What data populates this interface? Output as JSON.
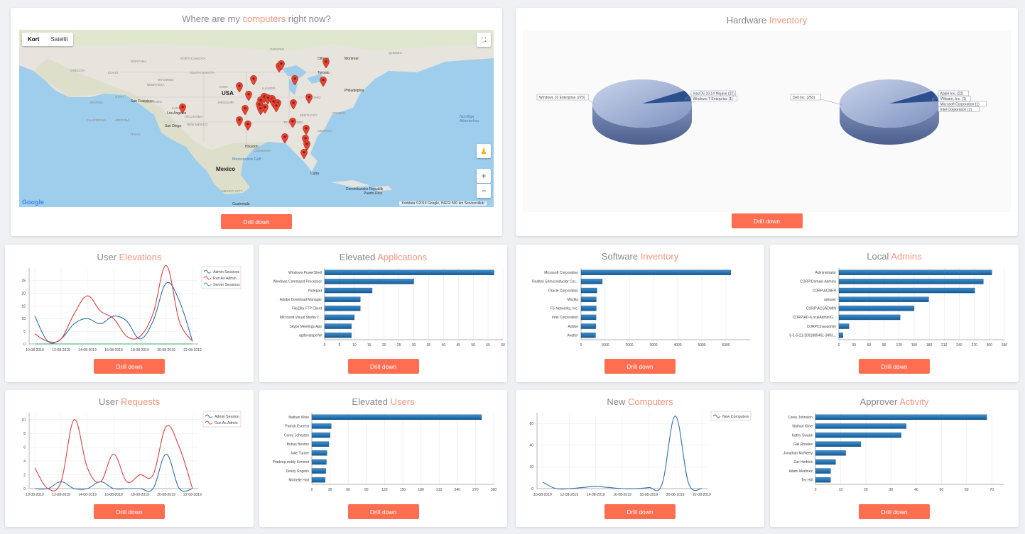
{
  "map_card": {
    "title_pre": "Where are my ",
    "title_accent": "computers",
    "title_post": " right now?",
    "map_types": [
      "Kort",
      "Satellit"
    ],
    "labels": [
      "USA",
      "Mexico",
      "Nordlige Atlanterhav",
      "Mexicanske Golf",
      "Cuba",
      "Dominikanske Republik",
      "Puerto Rico",
      "Guatemala",
      "Houston",
      "San Diego",
      "San Francisco",
      "Los Angeles",
      "Ottawa",
      "Toronto",
      "Montreal",
      "Philadelphia",
      "NEBRASKA",
      "KANSAS",
      "NEW MEXICO",
      "TEXAS",
      "ONTARIO",
      "QUEBEC",
      "NORTH DAKOTA",
      "SOUTH DAKOTA",
      "MONTANA",
      "WYOMING",
      "COLORADO",
      "UTAH",
      "NEVADA",
      "CALIFORNIA",
      "IDAHO",
      "OREGON",
      "ARIZONA",
      "OKLAHOMA",
      "MISSOURI",
      "ILLINOIS",
      "IOWA",
      "OHIO",
      "GEORGIA",
      "VIRGINIA",
      "KENTUCKY",
      "TENNESSEE",
      "LOUISIANA",
      "MEXICO CITY"
    ],
    "footer": "Kortdata ©2019 Google, INEGI   500 km   Servicevilkår",
    "google": "Google",
    "drill_label": "Drill down"
  },
  "hardware_card": {
    "title_pre": "Hardware ",
    "title_accent": "Inventory",
    "pie1": {
      "labels": [
        "Windows 10 Enterprise (273)",
        "macOS 10.14 Mojave (22)",
        "Windows 7 Enterprise (1)"
      ],
      "values": [
        273,
        22,
        1
      ]
    },
    "pie2": {
      "labels": [
        "Dell Inc. (283)",
        "Apple Inc. (22)",
        "VMware, Inc. (1)",
        "Microsoft Corporation (1)",
        "Intel Corporation (1)"
      ],
      "values": [
        283,
        22,
        1,
        1,
        1
      ]
    },
    "drill_label": "Drill down"
  },
  "user_elevations": {
    "title_pre": "User ",
    "title_accent": "Elevations",
    "drill_label": "Drill down",
    "chart_data": {
      "type": "line",
      "x": [
        "10-08-2019",
        "11-08-2019",
        "12-08-2019",
        "13-08-2019",
        "14-08-2019",
        "15-08-2019",
        "16-08-2019",
        "17-08-2019",
        "18-08-2019",
        "19-08-2019",
        "20-08-2019",
        "21-08-2019",
        "22-08-2019"
      ],
      "xticks": [
        "10-08-2019",
        "12-08-2019",
        "14-08-2019",
        "16-08-2019",
        "18-08-2019",
        "20-08-2019",
        "22-08-2019"
      ],
      "ylim": [
        0,
        30
      ],
      "yticks": [
        0,
        5,
        10,
        15,
        20,
        25
      ],
      "series": [
        {
          "name": "Admin Sessions",
          "color": "#2f6fad",
          "values": [
            11,
            1,
            2,
            8,
            10,
            8,
            11,
            9,
            2,
            9,
            24,
            17,
            1
          ]
        },
        {
          "name": "Run As Admin",
          "color": "#d94040",
          "values": [
            4,
            1,
            2,
            12,
            19,
            13,
            10,
            3,
            3,
            12,
            31,
            9,
            1
          ]
        },
        {
          "name": "Server Sessions",
          "color": "#3aa86b",
          "values": [
            0,
            0,
            0,
            0,
            0,
            0,
            0,
            0,
            0,
            0,
            0,
            0,
            0
          ]
        }
      ]
    }
  },
  "elevated_applications": {
    "title_pre": "Elevated ",
    "title_accent": "Applications",
    "drill_label": "Drill down",
    "chart_data": {
      "type": "bar",
      "categories": [
        "Windows PowerShell",
        "Windows Command Processor",
        "Notepad",
        "Adobe Download Manager",
        "FileZilla FTP Client",
        "Microsoft Visual Studio 2...",
        "Skype Meetings App",
        "agdevalsperW"
      ],
      "values": [
        57,
        30,
        16,
        12,
        12,
        10,
        9,
        9
      ],
      "xlim": [
        0,
        60
      ],
      "xticks": [
        0,
        5,
        10,
        15,
        20,
        25,
        30,
        35,
        40,
        45,
        50,
        55,
        60
      ]
    }
  },
  "software_inventory": {
    "title_pre": "Software ",
    "title_accent": "Inventory",
    "drill_label": "Drill down",
    "chart_data": {
      "type": "bar",
      "categories": [
        "Microsoft Corporation",
        "Realtek Semiconductor Cor...",
        "Oracle Corporation",
        "Mozilla",
        "F5 Networks, Inc.",
        "Intel Corporation",
        "Adobe",
        "Avatier"
      ],
      "values": [
        6200,
        880,
        660,
        630,
        630,
        620,
        610,
        600
      ],
      "xlim": [
        0,
        7000
      ],
      "xticks": [
        0,
        1000,
        2000,
        3000,
        4000,
        5000,
        6000
      ]
    }
  },
  "local_admins": {
    "title_pre": "Local ",
    "title_accent": "Admins",
    "drill_label": "Drill down",
    "chart_data": {
      "type": "bar",
      "categories": [
        "Administrator",
        "CORP\\Domain Admins",
        "CORP\\ACNER",
        "adruser",
        "CORP\\ACSADMIN",
        "CORP\\AD-ILocalAdmin\\G...",
        "CORP\\Chaoadmin",
        "S-1-5-21-2091889461-3493..."
      ],
      "values": [
        305,
        288,
        271,
        179,
        150,
        122,
        20,
        8
      ],
      "xlim": [
        0,
        330
      ],
      "xticks": [
        0,
        30,
        60,
        90,
        120,
        150,
        180,
        210,
        240,
        270,
        300,
        330
      ]
    }
  },
  "user_requests": {
    "title_pre": "User ",
    "title_accent": "Requests",
    "drill_label": "Drill down",
    "chart_data": {
      "type": "line",
      "x": [
        "10-08-2019",
        "11-08-2019",
        "12-08-2019",
        "13-08-2019",
        "14-08-2019",
        "15-08-2019",
        "16-08-2019",
        "17-08-2019",
        "18-08-2019",
        "19-08-2019",
        "20-08-2019",
        "21-08-2019",
        "22-08-2019"
      ],
      "xticks": [
        "10-08-2019",
        "12-08-2019",
        "14-08-2019",
        "16-08-2019",
        "18-08-2019",
        "20-08-2019",
        "22-08-2019"
      ],
      "ylim": [
        0,
        11
      ],
      "yticks": [
        0,
        2,
        4,
        6,
        8,
        10
      ],
      "series": [
        {
          "name": "Admin Session",
          "color": "#2f6fad",
          "values": [
            0,
            0,
            1,
            0,
            0,
            1,
            0,
            0,
            0,
            0,
            5,
            0,
            0
          ]
        },
        {
          "name": "Run As Admin",
          "color": "#d94040",
          "values": [
            3,
            0,
            1,
            10,
            3,
            1,
            5,
            1,
            2,
            2,
            9,
            6,
            0
          ]
        }
      ]
    }
  },
  "elevated_users": {
    "title_pre": "Elevated ",
    "title_accent": "Users",
    "drill_label": "Drill down",
    "chart_data": {
      "type": "bar",
      "categories": [
        "Nathan Kline",
        "Patrick Everest",
        "Corey Johnston",
        "Bobus Benton",
        "Jake Turner",
        "Pradeep reddy Kenmut",
        "Desiry Rogelio",
        "Michelle Holt"
      ],
      "values": [
        280,
        32,
        30,
        28,
        25,
        24,
        23,
        22
      ],
      "xlim": [
        0,
        300
      ],
      "xticks": [
        0,
        30,
        60,
        90,
        120,
        150,
        180,
        210,
        240,
        270,
        300
      ]
    }
  },
  "new_computers": {
    "title_pre": "New ",
    "title_accent": "Computers",
    "drill_label": "Drill down",
    "chart_data": {
      "type": "line",
      "x": [
        "10-08-2019",
        "11-08-2019",
        "12-08-2019",
        "13-08-2019",
        "14-08-2019",
        "15-08-2019",
        "16-08-2019",
        "17-08-2019",
        "18-08-2019",
        "19-08-2019",
        "20-08-2019",
        "21-08-2019",
        "22-08-2019"
      ],
      "xticks": [
        "10-08-2019",
        "12-08-2019",
        "14-08-2019",
        "16-08-2019",
        "18-08-2019",
        "20-08-2019",
        "22-08-2019"
      ],
      "ylim": [
        0,
        70
      ],
      "yticks": [
        0,
        20,
        40,
        60
      ],
      "series": [
        {
          "name": "New Computers",
          "color": "#2f6fad",
          "values": [
            6,
            0,
            0,
            1,
            2,
            1,
            0,
            0,
            1,
            4,
            67,
            5,
            0
          ]
        }
      ]
    }
  },
  "approver_activity": {
    "title_pre": "Approver ",
    "title_accent": "Activity",
    "drill_label": "Drill down",
    "chart_data": {
      "type": "bar",
      "categories": [
        "Corey Johnston",
        "Nathan Kline",
        "Kathy Swank",
        "Gail Rhodes",
        "Jonathan McNeely",
        "Zac Hedrick",
        "Adam Martinez",
        "Tex Hill"
      ],
      "values": [
        68,
        36,
        34,
        18,
        12,
        8,
        6,
        6
      ],
      "xlim": [
        0,
        75
      ],
      "xticks": [
        0,
        10,
        20,
        30,
        40,
        50,
        60,
        70
      ]
    }
  }
}
